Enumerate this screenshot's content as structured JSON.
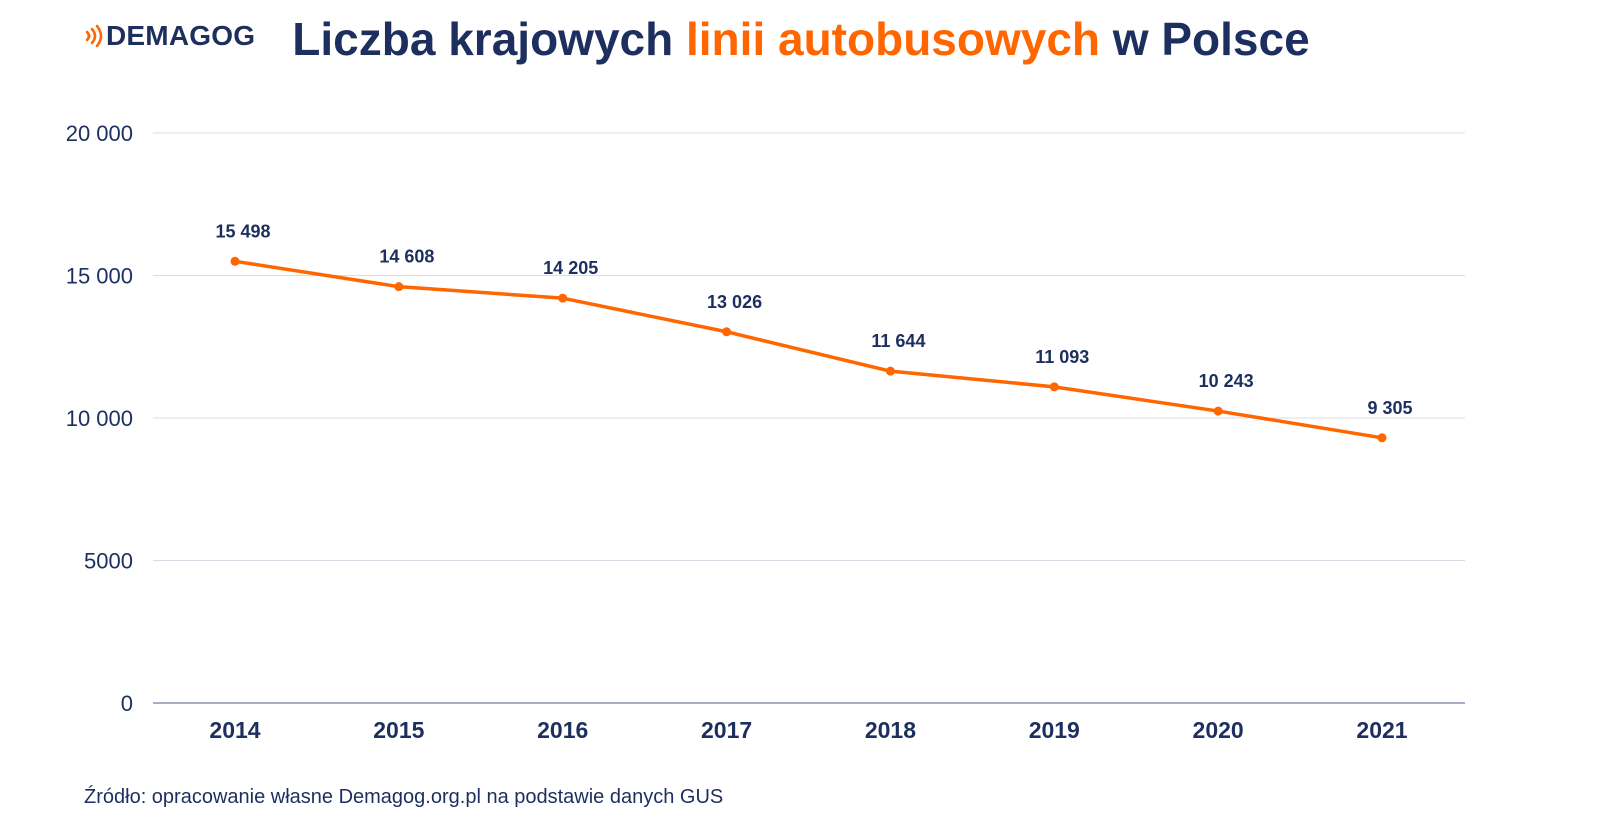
{
  "brand": {
    "name": "DEMAGOG",
    "icon": "signal-waves-icon",
    "accent": "#ff6600",
    "navy": "#1c2f5e"
  },
  "title": {
    "part1": "Liczba krajowych ",
    "highlight": "linii autobusowych",
    "part2": " w Polsce"
  },
  "source": "Źródło: opracowanie własne Demagog.org.pl na podstawie danych GUS",
  "chart_data": {
    "type": "line",
    "title": "Liczba krajowych linii autobusowych w Polsce",
    "xlabel": "",
    "ylabel": "",
    "categories": [
      "2014",
      "2015",
      "2016",
      "2017",
      "2018",
      "2019",
      "2020",
      "2021"
    ],
    "values": [
      15498,
      14608,
      14205,
      13026,
      11644,
      11093,
      10243,
      9305
    ],
    "value_labels": [
      "15 498",
      "14 608",
      "14 205",
      "13 026",
      "11 644",
      "11 093",
      "10 243",
      "9 305"
    ],
    "ylim": [
      0,
      20000
    ],
    "yticks": [
      0,
      5000,
      10000,
      15000,
      20000
    ],
    "ytick_labels": [
      "0",
      "5000",
      "10 000",
      "15 000",
      "20 000"
    ],
    "grid": true,
    "line_color": "#ff6600"
  }
}
